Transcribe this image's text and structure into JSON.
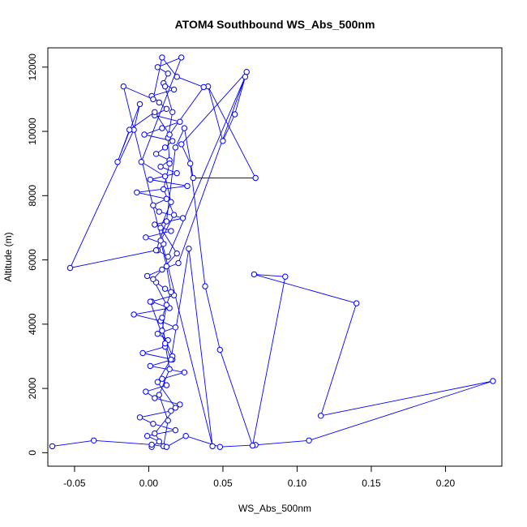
{
  "chart_data": {
    "type": "line",
    "title": "ATOM4 Southbound WS_Abs_500nm",
    "xlabel": "WS_Abs_500nm",
    "ylabel": "Altitude (m)",
    "xlim": [
      -0.068,
      0.238
    ],
    "ylim": [
      -420,
      12600
    ],
    "xticks": [
      -0.05,
      0.0,
      0.05,
      0.1,
      0.15,
      0.2
    ],
    "xtick_labels": [
      "-0.05",
      "0.00",
      "0.05",
      "0.10",
      "0.15",
      "0.20"
    ],
    "yticks": [
      0,
      2000,
      4000,
      6000,
      8000,
      10000,
      12000
    ],
    "ytick_labels": [
      "0",
      "2000",
      "4000",
      "6000",
      "8000",
      "10000",
      "12000"
    ],
    "grid": false,
    "legend": "none",
    "series_color": "#0000ff",
    "marker": "open-circle",
    "series": [
      {
        "x": [
          0.002,
          0.007,
          -0.001,
          0.018,
          0.003,
          -0.006,
          0.015,
          0.021,
          0.004,
          -0.002,
          0.012,
          0.009,
          0.024,
          0.001,
          0.016,
          -0.004,
          0.011,
          0.013,
          0.006,
          0.018,
          0.008,
          -0.01,
          0.014,
          0.002,
          0.017,
          0.011,
          0.005,
          -0.001,
          0.009,
          0.02,
          0.065,
          0.013,
          0.006,
          0.01,
          -0.002,
          0.015,
          0.004,
          0.023,
          0.007,
          0.003,
          0.012,
          -0.008,
          0.026,
          0.001,
          0.019,
          0.008,
          0.014,
          0.005,
          0.011,
          0.016,
          -0.003,
          0.009,
          0.021,
          0.004,
          0.012,
          0.007,
          0.002,
          0.017,
          0.01,
          0.013,
          0.006,
          0.022,
          -0.005,
          0.011,
          0.015,
          0.008,
          0.019,
          0.003,
          0.012,
          0.009,
          0.016,
          0.006,
          0.018,
          0.004,
          0.01,
          0.013,
          0.007,
          0.014,
          0.011,
          0.009,
          0.015,
          0.012,
          0.008,
          0.017,
          0.01,
          0.014,
          0.013,
          0.016,
          0.011
        ],
        "y": [
          180,
          350,
          520,
          700,
          900,
          1100,
          1300,
          1500,
          1700,
          1900,
          2100,
          2300,
          2500,
          2700,
          2900,
          3100,
          3300,
          3500,
          3700,
          3900,
          4100,
          4300,
          4500,
          4700,
          4900,
          5100,
          5300,
          5500,
          5700,
          5900,
          11700,
          6100,
          6300,
          6500,
          6700,
          6900,
          7100,
          7300,
          7500,
          7700,
          7900,
          8100,
          8300,
          8500,
          8700,
          8900,
          9100,
          9300,
          9500,
          9700,
          9900,
          10100,
          10300,
          10500,
          10700,
          10900,
          11100,
          11300,
          11500,
          11800,
          12000,
          12300,
          9050,
          8600,
          7800,
          7000,
          6200,
          5400,
          4600,
          3800,
          3000,
          2200,
          1400,
          600,
          200,
          1000,
          1800,
          2600,
          3400,
          4200,
          5000,
          5800,
          6600,
          7400,
          8200,
          9000,
          9800,
          10600,
          11400
        ]
      },
      {
        "x": [
          -0.065,
          -0.037,
          0.002,
          0.012,
          0.025,
          0.048,
          0.072,
          0.108,
          0.232,
          0.116,
          0.14,
          0.071,
          0.092,
          0.07,
          0.048,
          0.038,
          0.028,
          0.022,
          0.066,
          0.058,
          0.05,
          0.04,
          0.072,
          0.03,
          0.024,
          0.018,
          0.012,
          0.005,
          -0.053,
          -0.01,
          -0.006,
          -0.021,
          -0.013,
          0.004,
          0.014,
          0.037,
          0.019,
          0.009,
          0.003,
          -0.017,
          0.043,
          0.027,
          0.015,
          0.001
        ],
        "y": [
          200,
          380,
          250,
          180,
          520,
          180,
          240,
          380,
          2230,
          1150,
          4650,
          5550,
          5480,
          220,
          3200,
          5180,
          9000,
          9600,
          11850,
          10530,
          9700,
          11400,
          8550,
          8550,
          10100,
          9500,
          7200,
          6300,
          5750,
          10050,
          10850,
          9050,
          10050,
          10600,
          9900,
          11380,
          11700,
          12300,
          11000,
          11400,
          200,
          6350,
          2900,
          4700
        ]
      }
    ]
  }
}
